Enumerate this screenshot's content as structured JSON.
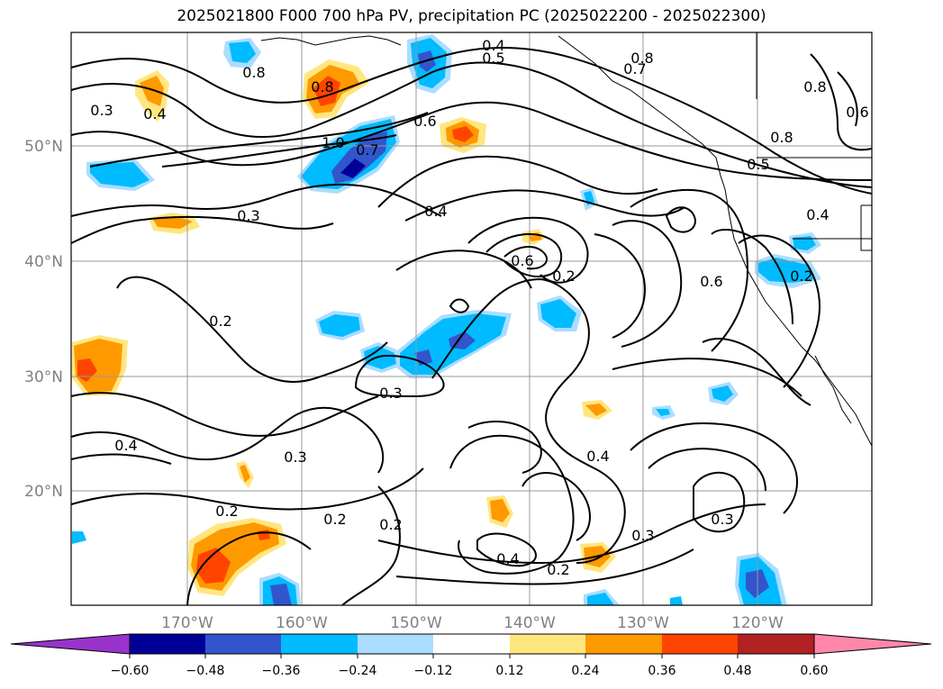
{
  "title": "2025021800 F000 700 hPa PV, precipitation PC (2025022200 - 2025022300)",
  "lon_ticks": [
    "170°W",
    "160°W",
    "150°W",
    "140°W",
    "130°W",
    "120°W"
  ],
  "lat_ticks": [
    "50°N",
    "40°N",
    "30°N",
    "20°N"
  ],
  "colorbar": {
    "tick_labels": [
      "−0.60",
      "−0.48",
      "−0.36",
      "−0.24",
      "−0.12",
      "0.12",
      "0.24",
      "0.36",
      "0.48",
      "0.60"
    ],
    "colors": [
      "#9933cc",
      "#000099",
      "#3355cc",
      "#00bbff",
      "#aaddff",
      "#ffffff",
      "#ffe680",
      "#ff9900",
      "#ff4400",
      "#b22222",
      "#ff88aa"
    ]
  },
  "contour_labels": [
    "0.4",
    "0.5",
    "0.8",
    "0.7",
    "0.8",
    "0.8",
    "0.6",
    "0.8",
    "0.5",
    "0.4",
    "0.3",
    "0.4",
    "0.8",
    "1.0",
    "0.7",
    "0.6",
    "0.3",
    "0.4",
    "0.6",
    "0.2",
    "0.6",
    "0.2",
    "0.2",
    "0.3",
    "0.4",
    "0.3",
    "0.2",
    "0.2",
    "0.2",
    "0.4",
    "0.3",
    "0.3",
    "0.4",
    "0.2"
  ],
  "colors": {
    "contour": "#000000",
    "grid": "#999999",
    "tick": "#808080"
  }
}
